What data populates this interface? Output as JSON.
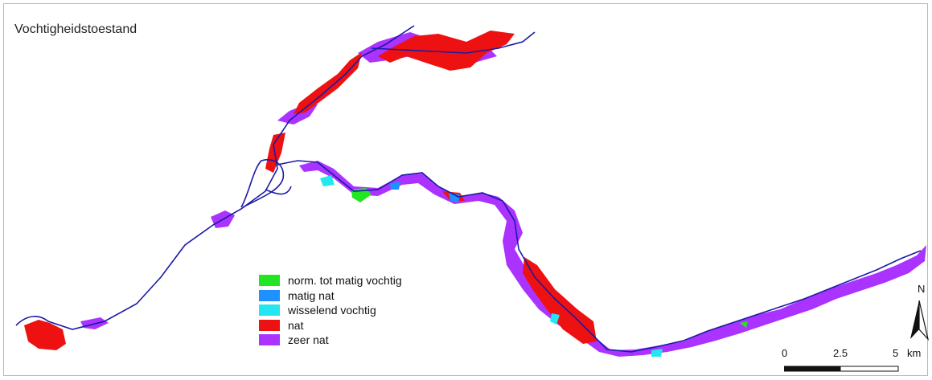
{
  "title": "Vochtigheidstoestand",
  "legend": [
    {
      "label": "norm. tot matig vochtig",
      "color": "#22e622"
    },
    {
      "label": "matig nat",
      "color": "#1e90ff"
    },
    {
      "label": "wisselend vochtig",
      "color": "#22e6f0"
    },
    {
      "label": "nat",
      "color": "#ee1111"
    },
    {
      "label": "zeer nat",
      "color": "#aa33ff"
    }
  ],
  "north_arrow": {
    "label": "N",
    "icon": "north-arrow-icon"
  },
  "scale_bar": {
    "labels": [
      "0",
      "2.5",
      "5"
    ],
    "unit": "km"
  },
  "colors": {
    "river": "#1a1aa6",
    "frame": "#b9b9b9"
  }
}
